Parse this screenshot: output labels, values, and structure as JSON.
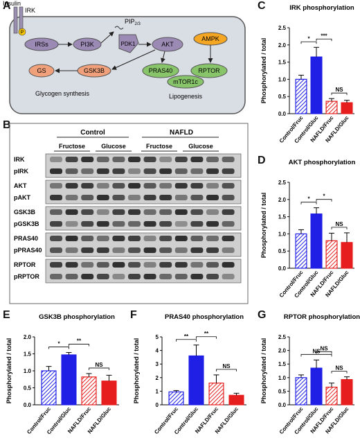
{
  "panels": {
    "A": "A",
    "B": "B",
    "C": "C",
    "D": "D",
    "E": "E",
    "F": "F",
    "G": "G"
  },
  "pathway": {
    "insulin": "Insulin",
    "irk": "IRK",
    "p": "P",
    "irss": "IRSs",
    "pi3k": "PI3K",
    "pip": "PIP",
    "pip_sub": "2/3",
    "pdk1": "PDK1",
    "akt": "AKT",
    "ampk": "AMPK",
    "gs": "GS",
    "gsk3b": "GSK3B",
    "pras40": "PRAS40",
    "rptor": "RPTOR",
    "mtor": "mTOR1c",
    "glycogen": "Glycogen synthesis",
    "lipogenesis": "Lipogenesis"
  },
  "blot": {
    "group_control": "Control",
    "group_nafld": "NAFLD",
    "sub_labels": [
      "Fructose",
      "Glucose",
      "Fructose",
      "Glucose"
    ],
    "rows": [
      "IRK",
      "pIRK",
      "AKT",
      "pAKT",
      "GSK3B",
      "pGSK3B",
      "PRAS40",
      "pPRAS40",
      "RPTOR",
      "pRPTOR"
    ]
  },
  "colors": {
    "blue": "#1f1fe6",
    "red": "#e61e1e",
    "light_blue": "#7a7ae6",
    "light_red": "#e88a8a",
    "irss": "#9b8ab4",
    "akt": "#9b8ab4",
    "ampk": "#f5a623",
    "gs": "#f0a07a",
    "green": "#88c46a"
  },
  "chart_data": [
    {
      "id": "C",
      "type": "bar",
      "title": "IRK phosphorylation",
      "ylabel": "Phosphorylated / total",
      "categories": [
        "Control/Fruc",
        "Control/Gluc",
        "NAFLD/Fruc",
        "NAFLD/Gluc"
      ],
      "values": [
        1.0,
        1.65,
        0.36,
        0.32
      ],
      "errors": [
        0.12,
        0.28,
        0.08,
        0.07
      ],
      "ylim": [
        0,
        2.5
      ],
      "yticks": [
        "0.0",
        "0.5",
        "1.0",
        "1.5",
        "2.0",
        "2.5"
      ],
      "sig": [
        {
          "a": 0,
          "b": 1,
          "label": "*"
        },
        {
          "a": 1,
          "b": 2,
          "label": "***"
        },
        {
          "a": 2,
          "b": 3,
          "label": "NS"
        }
      ]
    },
    {
      "id": "D",
      "type": "bar",
      "title": "AKT phosphorylation",
      "ylabel": "Phosphorylated / total",
      "categories": [
        "Control/Fruc",
        "Control/Gluc",
        "NAFLD/Fruc",
        "NAFLD/Gluc"
      ],
      "values": [
        1.0,
        1.58,
        0.8,
        0.75
      ],
      "errors": [
        0.12,
        0.18,
        0.22,
        0.28
      ],
      "ylim": [
        0,
        2.5
      ],
      "yticks": [
        "0.0",
        "0.5",
        "1.0",
        "1.5",
        "2.0",
        "2.5"
      ],
      "sig": [
        {
          "a": 0,
          "b": 1,
          "label": "*"
        },
        {
          "a": 1,
          "b": 2,
          "label": "*"
        },
        {
          "a": 2,
          "b": 3,
          "label": "NS"
        }
      ]
    },
    {
      "id": "E",
      "type": "bar",
      "title": "GSK3B phosphorylation",
      "ylabel": "Phosphorylated / total",
      "categories": [
        "Control/Fruc",
        "Control/Gluc",
        "NAFLD/Fruc",
        "NAFLD/Gluc"
      ],
      "values": [
        1.0,
        1.47,
        0.82,
        0.7
      ],
      "errors": [
        0.13,
        0.07,
        0.1,
        0.17
      ],
      "ylim": [
        0,
        2.0
      ],
      "yticks": [
        "0.0",
        "0.5",
        "1.0",
        "1.5",
        "2.0"
      ],
      "sig": [
        {
          "a": 0,
          "b": 1,
          "label": "*"
        },
        {
          "a": 1,
          "b": 2,
          "label": "**"
        },
        {
          "a": 2,
          "b": 3,
          "label": "NS"
        }
      ]
    },
    {
      "id": "F",
      "type": "bar",
      "title": "PRAS40 phosphorylation",
      "ylabel": "Phosphorylated / total",
      "categories": [
        "Control/Fruc",
        "Control/Gluc",
        "NAFLD/Fruc",
        "NAFLD/Gluc"
      ],
      "values": [
        0.95,
        3.6,
        1.6,
        0.7
      ],
      "errors": [
        0.1,
        0.8,
        0.6,
        0.15
      ],
      "ylim": [
        0,
        5
      ],
      "yticks": [
        "0",
        "1",
        "2",
        "3",
        "4",
        "5"
      ],
      "sig": [
        {
          "a": 0,
          "b": 1,
          "label": "**"
        },
        {
          "a": 1,
          "b": 2,
          "label": "**"
        },
        {
          "a": 2,
          "b": 3,
          "label": "NS"
        }
      ]
    },
    {
      "id": "G",
      "type": "bar",
      "title": "RPTOR phosphorylation",
      "ylabel": "Phosphorylated / total",
      "categories": [
        "Control/Fruc",
        "Control/Gluc",
        "NAFLD/Fruc",
        "NAFLD/Gluc"
      ],
      "values": [
        1.0,
        1.35,
        0.65,
        0.93
      ],
      "errors": [
        0.1,
        0.3,
        0.15,
        0.1
      ],
      "ylim": [
        0,
        2.5
      ],
      "yticks": [
        "0.0",
        "0.5",
        "1.0",
        "1.5",
        "2.0",
        "2.5"
      ],
      "sig": [
        {
          "a": 0,
          "b": 2,
          "label": "NS"
        },
        {
          "a": 1,
          "b": 2,
          "label": "NS"
        },
        {
          "a": 2,
          "b": 3,
          "label": "NS"
        }
      ]
    }
  ]
}
